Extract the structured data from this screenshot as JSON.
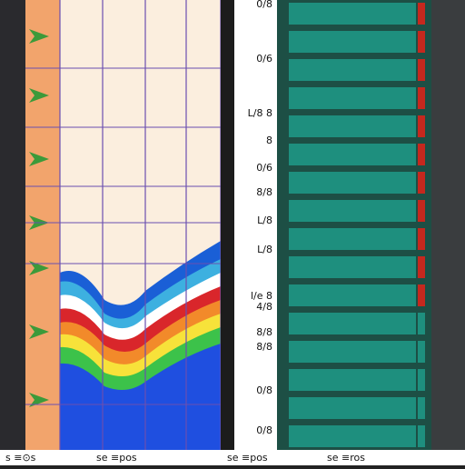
{
  "side_labels": [
    "0/8",
    "0/6",
    "L/8 8",
    "8",
    "0/6",
    "8/8",
    "L/8",
    "L/8",
    "l/e 8",
    "4/8",
    "8/8",
    "8/8",
    "0/8",
    "0/8"
  ],
  "footer": [
    "s ≡⊙s",
    "se ≡pos",
    "se ≡pos",
    "se ≡ros"
  ]
}
